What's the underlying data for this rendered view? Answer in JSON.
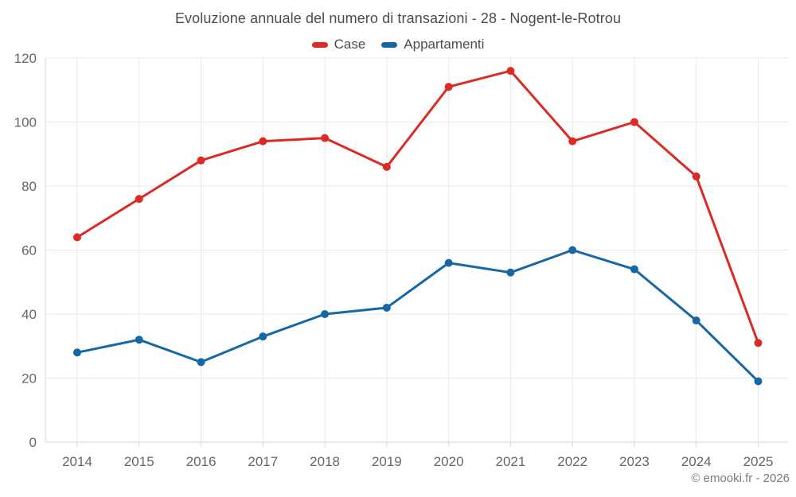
{
  "title": "Evoluzione annuale del numero di transazioni - 28 - Nogent-le-Rotrou",
  "footer": "© emooki.fr - 2026",
  "chart_data": {
    "type": "line",
    "title": "Evoluzione annuale del numero di transazioni - 28 - Nogent-le-Rotrou",
    "categories": [
      "2014",
      "2015",
      "2016",
      "2017",
      "2018",
      "2019",
      "2020",
      "2021",
      "2022",
      "2023",
      "2024",
      "2025"
    ],
    "series": [
      {
        "name": "Case",
        "color": "#dc2a25",
        "values": [
          64,
          76,
          88,
          94,
          95,
          86,
          111,
          116,
          94,
          100,
          83,
          31
        ]
      },
      {
        "name": "Appartamenti",
        "color": "#1568a5",
        "values": [
          28,
          32,
          25,
          33,
          40,
          42,
          56,
          53,
          60,
          54,
          38,
          19
        ]
      }
    ],
    "xlabel": "",
    "ylabel": "",
    "ylim": [
      0,
      120
    ],
    "yticks": [
      0,
      20,
      40,
      60,
      80,
      100,
      120
    ],
    "grid": true,
    "legend_position": "top",
    "markers": true,
    "grid_color": "#e9e9e9",
    "axis_color": "#d6d6d6",
    "tick_label_color": "#666666"
  }
}
